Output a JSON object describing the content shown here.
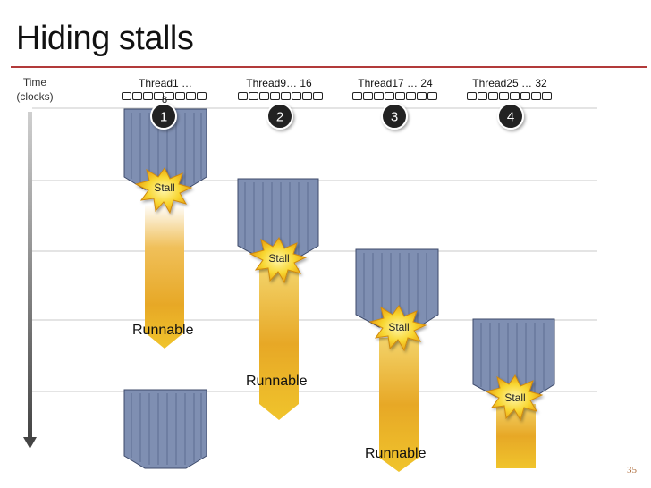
{
  "title": "Hiding stalls",
  "time_axis": {
    "line1": "Time",
    "line2": "(clocks)"
  },
  "threads": [
    {
      "label": "Thread1 …",
      "label_overflow": "8",
      "number": "1"
    },
    {
      "label": "Thread9… 16",
      "number": "2"
    },
    {
      "label": "Thread17 … 24",
      "number": "3"
    },
    {
      "label": "Thread25 … 32",
      "number": "4"
    }
  ],
  "stall_label": "Stall",
  "runnable_label": "Runnable",
  "page_number": "35",
  "colors": {
    "title_rule": "#b23a3a",
    "warp_fill": "#7f8fb2",
    "arrow_gold": "#e6b020",
    "burst": "#f6cf2a"
  }
}
